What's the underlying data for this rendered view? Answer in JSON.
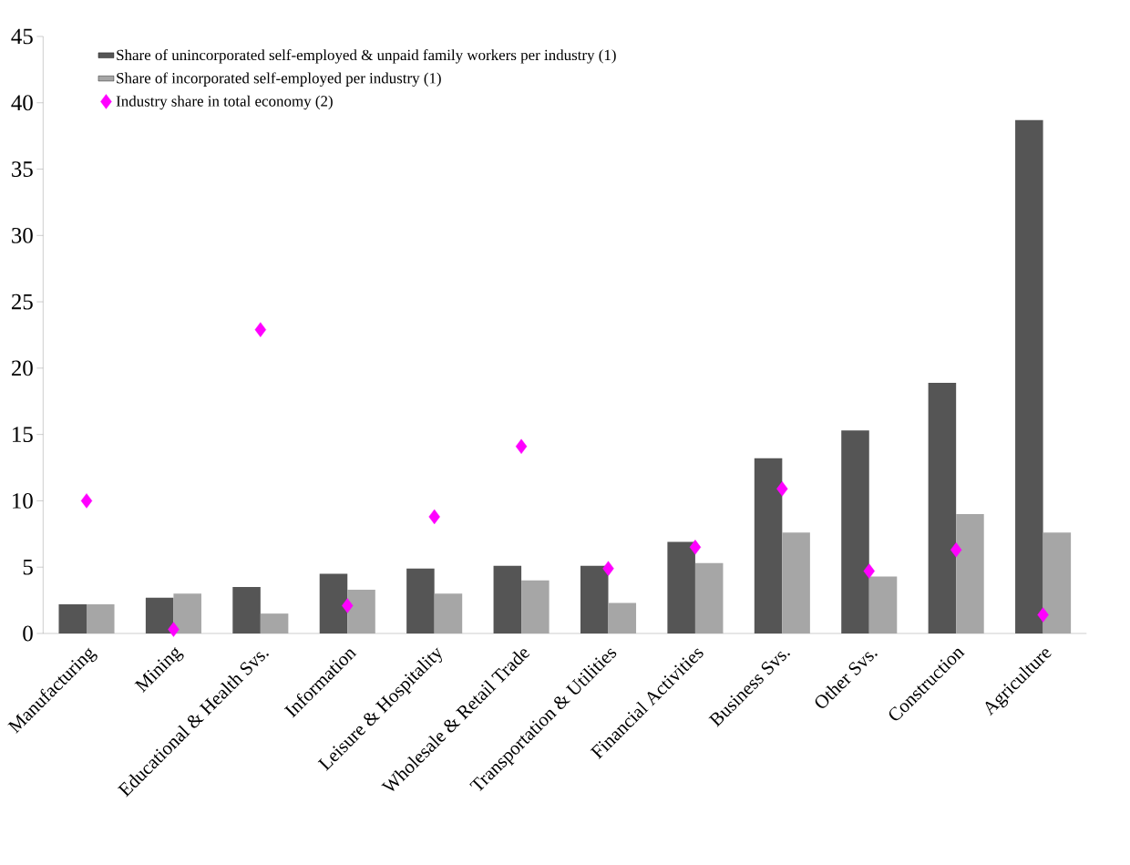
{
  "chart_data": {
    "type": "bar",
    "categories": [
      "Manufacturing",
      "Mining",
      "Educational & Health Svs.",
      "Information",
      "Leisure & Hospitality",
      "Wholesale & Retail Trade",
      "Transportation & Utilities",
      "Financial Activities",
      "Business Svs.",
      "Other Svs.",
      "Construction",
      "Agriculture"
    ],
    "series": [
      {
        "name": "Share of unincorporated self-employed & unpaid family workers per industry (1)",
        "color": "#555555",
        "values": [
          2.2,
          2.7,
          3.5,
          4.5,
          4.9,
          5.1,
          5.1,
          6.9,
          13.2,
          15.3,
          18.9,
          38.7
        ]
      },
      {
        "name": "Share of incorporated self-employed per industry (1)",
        "color": "#a6a6a6",
        "values": [
          2.2,
          3.0,
          1.5,
          3.3,
          3.0,
          4.0,
          2.3,
          5.3,
          7.6,
          4.3,
          9.0,
          7.6
        ]
      },
      {
        "name": "Industry share in total economy (2)",
        "type": "scatter",
        "color": "#ff00ff",
        "x": [
          "Manufacturing",
          "Mining",
          "Educational & Health Svs.",
          "Information",
          "Leisure & Hospitality",
          "Wholesale & Retail Trade",
          "Transportation & Utilities",
          "Financial Activities",
          "Business Svs.",
          "Other Svs.",
          "Construction",
          "Agriculture"
        ],
        "values": [
          10.0,
          0.3,
          22.9,
          2.1,
          8.8,
          14.1,
          4.9,
          6.5,
          10.9,
          4.7,
          6.3,
          1.4
        ]
      }
    ],
    "ylim": [
      0,
      45
    ],
    "yticks": [
      0,
      5,
      10,
      15,
      20,
      25,
      30,
      35,
      40,
      45
    ],
    "marker": "diamond",
    "legend": "top left",
    "grid": false
  }
}
